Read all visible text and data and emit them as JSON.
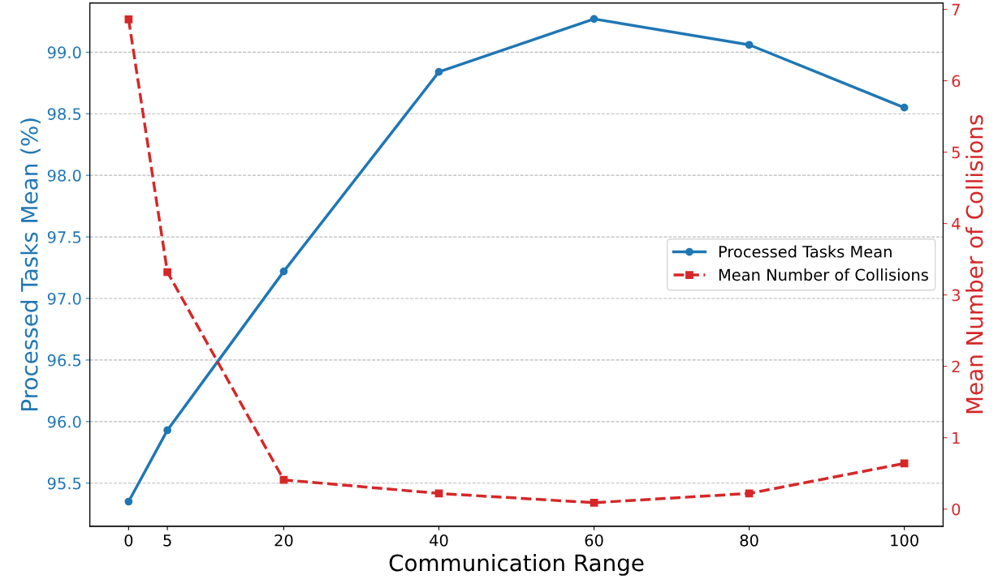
{
  "chart_data": {
    "type": "line",
    "xlabel": "Communication Range",
    "ylabel": "Processed Tasks Mean (%)",
    "y2label": "Mean Number of Collisions",
    "x": [
      0,
      5,
      20,
      40,
      60,
      80,
      100
    ],
    "xlim": [
      -5,
      105
    ],
    "xticks": [
      0,
      5,
      20,
      40,
      60,
      80,
      100
    ],
    "ylim": [
      95.15,
      99.4
    ],
    "yticks": [
      {
        "value": 95.5,
        "label": "95.5"
      },
      {
        "value": 96.0,
        "label": "96.0"
      },
      {
        "value": 96.5,
        "label": "96.5"
      },
      {
        "value": 97.0,
        "label": "97.0"
      },
      {
        "value": 97.5,
        "label": "97.5"
      },
      {
        "value": 98.0,
        "label": "98.0"
      },
      {
        "value": 98.5,
        "label": "98.5"
      },
      {
        "value": 99.0,
        "label": "99.0"
      }
    ],
    "y2lim": [
      -0.24,
      7.09
    ],
    "y2ticks": [
      0,
      1,
      2,
      3,
      4,
      5,
      6,
      7
    ],
    "grid": "y",
    "legend": "right",
    "series": [
      {
        "name": "Processed Tasks Mean",
        "color": "#1f77b4",
        "marker": "circle",
        "line_style": "solid",
        "values": [
          95.35,
          95.93,
          97.22,
          98.84,
          99.27,
          99.06,
          98.55
        ]
      },
      {
        "name": "Mean Number of Collisions",
        "color": "#d62728",
        "marker": "square",
        "line_style": "dashed",
        "axis": "y2",
        "values": [
          6.86,
          3.32,
          0.41,
          0.22,
          0.09,
          0.22,
          0.64
        ]
      }
    ]
  }
}
